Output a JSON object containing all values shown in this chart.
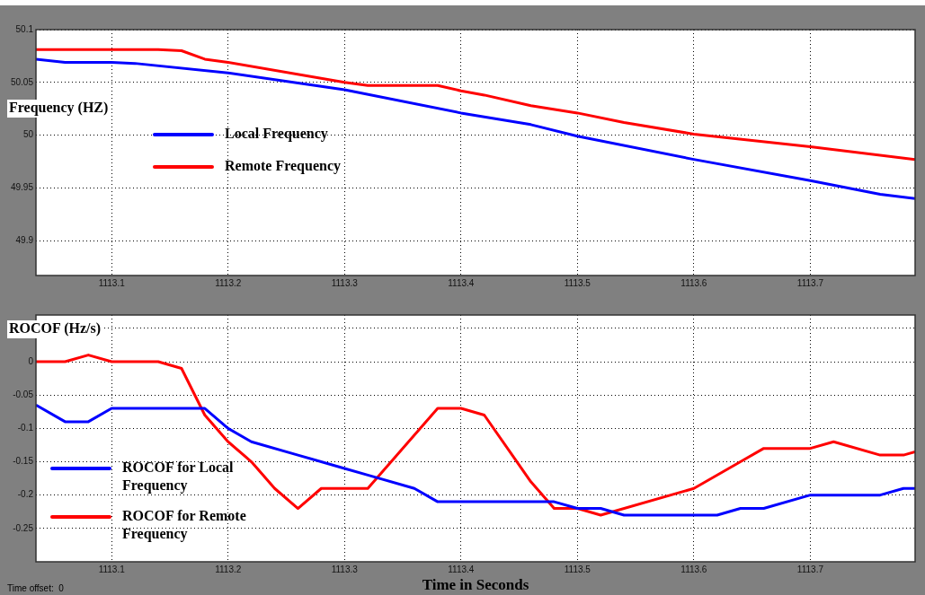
{
  "chart_data": [
    {
      "type": "line",
      "ylabel": "Frequency (HZ)",
      "xlim": [
        1113.035,
        1113.79
      ],
      "xticks": [
        1113.1,
        1113.2,
        1113.3,
        1113.4,
        1113.5,
        1113.6,
        1113.7
      ],
      "ylim": [
        49.867,
        50.1
      ],
      "yticks": [
        49.9,
        49.95,
        50,
        50.05,
        50.1
      ],
      "grid": true,
      "legend": "left",
      "line_style": "solid",
      "marker": "none",
      "series": [
        {
          "name": "Local Frequency",
          "color": "#0000ff",
          "x": [
            1113.035,
            1113.06,
            1113.1,
            1113.12,
            1113.2,
            1113.3,
            1113.4,
            1113.46,
            1113.5,
            1113.6,
            1113.7,
            1113.76,
            1113.79
          ],
          "values": [
            50.072,
            50.069,
            50.069,
            50.068,
            50.059,
            50.043,
            50.021,
            50.01,
            49.999,
            49.977,
            49.957,
            49.944,
            49.94
          ]
        },
        {
          "name": "Remote Frequency",
          "color": "#ff0000",
          "x": [
            1113.035,
            1113.14,
            1113.16,
            1113.18,
            1113.2,
            1113.3,
            1113.32,
            1113.38,
            1113.4,
            1113.42,
            1113.46,
            1113.5,
            1113.54,
            1113.6,
            1113.7,
            1113.79
          ],
          "values": [
            50.081,
            50.081,
            50.08,
            50.072,
            50.069,
            50.05,
            50.047,
            50.047,
            50.042,
            50.038,
            50.028,
            50.021,
            50.012,
            50.001,
            49.989,
            49.977
          ]
        }
      ]
    },
    {
      "type": "line",
      "ylabel": "ROCOF (Hz/s)",
      "xlabel": "Time in Seconds",
      "annotations": [
        "Time offset:  0"
      ],
      "xlim": [
        1113.035,
        1113.79
      ],
      "xticks": [
        1113.1,
        1113.2,
        1113.3,
        1113.4,
        1113.5,
        1113.6,
        1113.7
      ],
      "ylim": [
        -0.3,
        0.07
      ],
      "yticks": [
        -0.25,
        -0.2,
        -0.15,
        -0.1,
        -0.05,
        0,
        {
          "value": 0.05,
          "label": null
        }
      ],
      "grid": true,
      "legend": "bottom left",
      "line_style": "solid",
      "marker": "none",
      "series": [
        {
          "name": "ROCOF for Local Frequency",
          "color": "#0000ff",
          "x": [
            1113.035,
            1113.06,
            1113.08,
            1113.1,
            1113.18,
            1113.2,
            1113.22,
            1113.26,
            1113.3,
            1113.32,
            1113.36,
            1113.38,
            1113.48,
            1113.5,
            1113.52,
            1113.54,
            1113.62,
            1113.64,
            1113.66,
            1113.7,
            1113.76,
            1113.78,
            1113.79
          ],
          "values": [
            -0.065,
            -0.09,
            -0.09,
            -0.07,
            -0.07,
            -0.1,
            -0.12,
            -0.14,
            -0.16,
            -0.17,
            -0.19,
            -0.21,
            -0.21,
            -0.22,
            -0.22,
            -0.23,
            -0.23,
            -0.22,
            -0.22,
            -0.2,
            -0.2,
            -0.19,
            -0.19
          ]
        },
        {
          "name": "ROCOF for Remote Frequency",
          "color": "#ff0000",
          "x": [
            1113.035,
            1113.06,
            1113.08,
            1113.1,
            1113.14,
            1113.16,
            1113.18,
            1113.2,
            1113.22,
            1113.24,
            1113.26,
            1113.28,
            1113.32,
            1113.38,
            1113.4,
            1113.42,
            1113.46,
            1113.48,
            1113.5,
            1113.52,
            1113.6,
            1113.64,
            1113.66,
            1113.7,
            1113.72,
            1113.76,
            1113.78,
            1113.79
          ],
          "values": [
            0,
            0,
            0.01,
            0,
            0,
            -0.01,
            -0.08,
            -0.12,
            -0.15,
            -0.19,
            -0.22,
            -0.19,
            -0.19,
            -0.07,
            -0.07,
            -0.08,
            -0.18,
            -0.22,
            -0.22,
            -0.23,
            -0.19,
            -0.15,
            -0.13,
            -0.13,
            -0.12,
            -0.14,
            -0.14,
            -0.135
          ]
        }
      ]
    }
  ]
}
